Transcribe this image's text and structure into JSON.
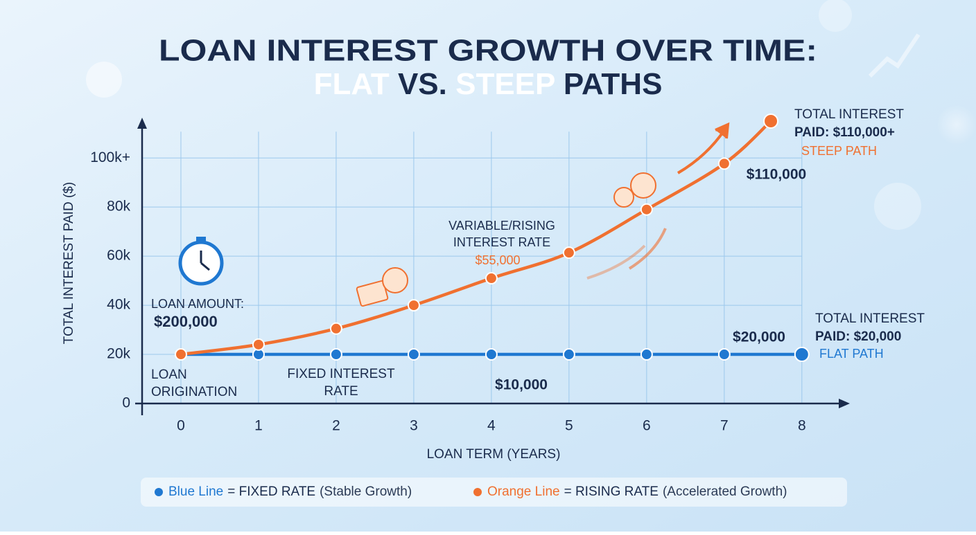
{
  "chart_data": {
    "type": "line",
    "title": "LOAN INTEREST GROWTH OVER TIME:",
    "subtitle": [
      "FLAT",
      "VS.",
      "STEEP",
      "PATHS"
    ],
    "x_label": "LOAN TERM (YEARS)",
    "y_label": "TOTAL INTEREST PAID ($)",
    "xlim": [
      -0.5,
      8.6
    ],
    "ylim": [
      0,
      115000
    ],
    "xticks": [
      0,
      1,
      2,
      3,
      4,
      5,
      6,
      7,
      8
    ],
    "yticks": [
      0,
      {
        "value": 20000,
        "label": "20k"
      },
      {
        "value": 40000,
        "label": "40k"
      },
      {
        "value": 60000,
        "label": "60k"
      },
      {
        "value": 80000,
        "label": "80k"
      },
      {
        "value": 100000,
        "label": "100k+"
      }
    ],
    "grid": true,
    "series": [
      {
        "name": "Blue Line",
        "label": "= FIXED RATE",
        "note": "(Stable Growth)",
        "color": "#1f78d1",
        "x": [
          0,
          1,
          2,
          3,
          4,
          5,
          6,
          7,
          8
        ],
        "values": [
          20000,
          20000,
          20000,
          20000,
          20000,
          20000,
          20000,
          20000,
          20000
        ]
      },
      {
        "name": "Orange Line",
        "label": "= RISING RATE",
        "note": "(Accelerated Growth)",
        "color": "#f07030",
        "x": [
          0,
          1,
          2,
          3,
          4,
          5,
          6,
          7,
          7.6
        ],
        "values": [
          20000,
          24000,
          30500,
          40000,
          51000,
          61400,
          79000,
          97700,
          115000
        ]
      }
    ],
    "annotations": [
      "LOAN AMOUNT:",
      "$200,000",
      "LOAN",
      "ORIGINATION",
      "FIXED INTEREST",
      "RATE",
      "$10,000",
      "VARIABLE/RISING",
      "INTEREST RATE",
      "$55,000",
      "$110,000",
      "TOTAL INTEREST",
      "PAID: $110,000+",
      "STEEP PATH",
      "$20,000",
      "TOTAL INTEREST",
      "PAID: $20,000",
      "FLAT PATH"
    ]
  }
}
